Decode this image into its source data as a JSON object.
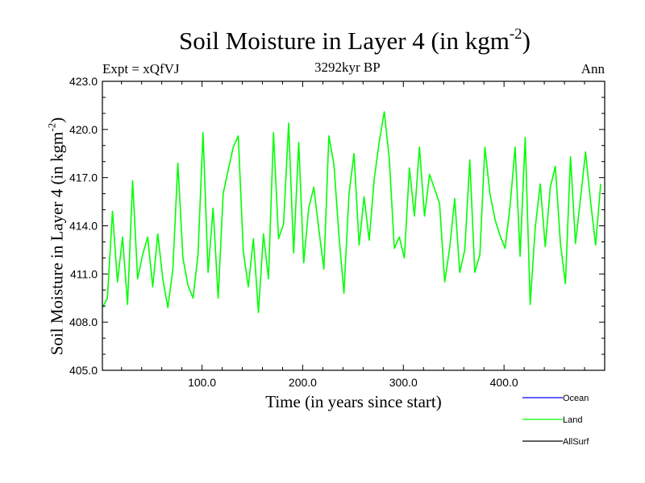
{
  "header": {
    "title_main": "Soil Moisture in Layer 4 (in kgm",
    "title_sup": "-2",
    "title_end": ")",
    "expt": "Expt = xQfVJ",
    "period": "3292kyr BP",
    "season": "Ann"
  },
  "axes": {
    "ylabel_main": "Soil Moisture in Layer 4 (in kgm",
    "ylabel_sup": "-2",
    "ylabel_end": ")",
    "xlabel": "Time (in years since start)"
  },
  "colors": {
    "ocean": "#0000ff",
    "land": "#00ff00",
    "allsurf": "#000000"
  },
  "chart_data": {
    "type": "line",
    "title": "Soil Moisture in Layer 4 (in kgm-2)",
    "xlabel": "Time (in years since start)",
    "ylabel": "Soil Moisture in Layer 4 (in kgm-2)",
    "xlim": [
      1,
      500
    ],
    "ylim": [
      405.0,
      423.0
    ],
    "x_ticks": [
      100,
      200,
      300,
      400
    ],
    "x_tick_labels": [
      "100.0",
      "200.0",
      "300.0",
      "400.0"
    ],
    "y_ticks": [
      405,
      408,
      411,
      414,
      417,
      420,
      423
    ],
    "y_tick_labels": [
      "405.0",
      "408.0",
      "411.0",
      "414.0",
      "417.0",
      "420.0",
      "423.0"
    ],
    "legend": [
      "Ocean",
      "Land",
      "AllSurf"
    ],
    "legend_position": "bottom-right",
    "series": [
      {
        "name": "Ocean",
        "color": "#0000ff",
        "x": [],
        "values": []
      },
      {
        "name": "Land",
        "color": "#00ff00",
        "x_start": 1,
        "x_step": 5,
        "values": [
          408.9,
          409.5,
          414.9,
          410.5,
          413.3,
          409.1,
          416.8,
          410.7,
          412.2,
          413.3,
          410.2,
          413.5,
          410.7,
          408.9,
          411.3,
          417.9,
          412.0,
          410.3,
          409.5,
          412.2,
          419.8,
          411.1,
          415.1,
          409.5,
          416.0,
          417.5,
          418.9,
          419.6,
          412.4,
          410.2,
          413.2,
          408.6,
          413.5,
          410.7,
          419.8,
          413.2,
          414.1,
          420.4,
          412.3,
          419.2,
          411.7,
          415.1,
          416.4,
          413.8,
          411.3,
          419.6,
          417.8,
          413.4,
          409.8,
          416.0,
          418.5,
          412.8,
          415.8,
          413.1,
          416.9,
          419.2,
          421.1,
          418.2,
          412.6,
          413.3,
          412.0,
          417.6,
          414.6,
          418.9,
          414.6,
          417.2,
          416.3,
          415.4,
          410.5,
          412.6,
          415.7,
          411.1,
          412.5,
          418.1,
          411.1,
          412.2,
          418.9,
          416.0,
          414.4,
          413.4,
          412.6,
          415.2,
          418.9,
          412.1,
          419.5,
          409.1,
          413.9,
          416.6,
          412.7,
          416.4,
          417.7,
          412.9,
          410.4,
          418.3,
          412.9,
          415.7,
          418.6,
          415.5,
          412.8,
          416.6
        ]
      },
      {
        "name": "AllSurf",
        "color": "#000000",
        "x": [],
        "values": []
      }
    ]
  }
}
